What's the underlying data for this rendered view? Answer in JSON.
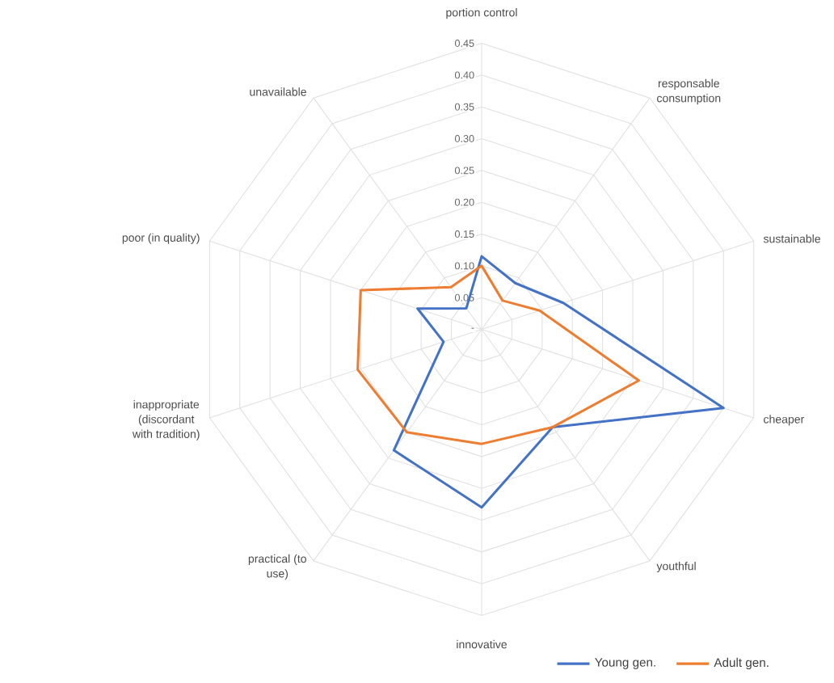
{
  "chart_data": {
    "type": "radar",
    "categories": [
      "portion control",
      "responsable consumption",
      "sustainable",
      "cheaper",
      "youthful",
      "innovative",
      "practical (to use)",
      "inappropriate (discordant with tradition)",
      "poor (in quality)",
      "unavailable"
    ],
    "series": [
      {
        "name": "Young gen.",
        "color": "#4472c4",
        "values": [
          0.115,
          0.09,
          0.135,
          0.4,
          0.19,
          0.28,
          0.235,
          0.063,
          0.106,
          0.041
        ]
      },
      {
        "name": "Adult gen.",
        "color": "#ed7d31",
        "values": [
          0.1,
          0.056,
          0.096,
          0.26,
          0.19,
          0.18,
          0.2,
          0.205,
          0.2,
          0.082
        ]
      }
    ],
    "ylim": [
      0,
      0.45
    ],
    "yticks": [
      {
        "value": 0,
        "label": "-"
      },
      0.05,
      {
        "value": 0.1,
        "label": "0.10"
      },
      0.15,
      {
        "value": 0.2,
        "label": "0.20"
      },
      0.25,
      {
        "value": 0.3,
        "label": "0.30"
      },
      0.35,
      {
        "value": 0.4,
        "label": "0.40"
      },
      0.45
    ],
    "grid": true,
    "legend": "bottom right",
    "marker": "none",
    "line_style": "solid"
  }
}
